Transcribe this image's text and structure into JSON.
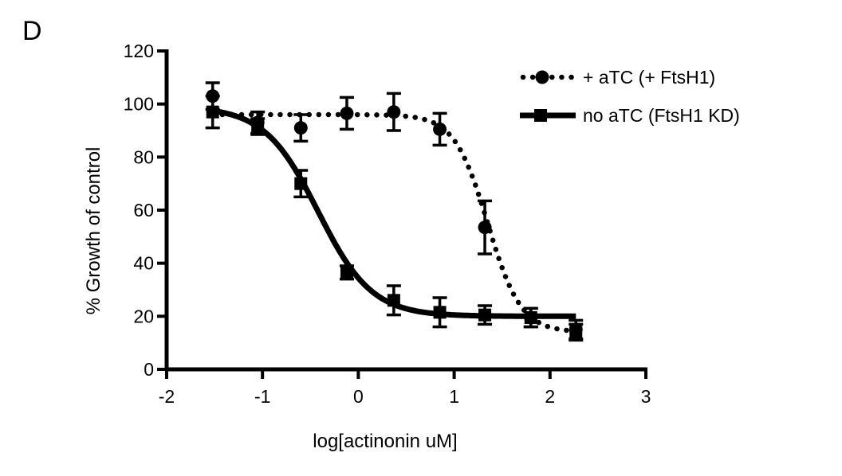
{
  "panel_label": "D",
  "chart_data": {
    "type": "line",
    "title": "",
    "xlabel": "log[actinonin uM]",
    "ylabel": "% Growth of control",
    "xlim": [
      -2,
      3
    ],
    "ylim": [
      0,
      120
    ],
    "x_ticks": [
      "-2",
      "-1",
      "0",
      "1",
      "2",
      "3"
    ],
    "y_ticks": [
      "0",
      "20",
      "40",
      "60",
      "80",
      "100",
      "120"
    ],
    "legend_position": "top-right",
    "series": [
      {
        "name": "+ aTC (+ FtsH1)",
        "marker": "circle",
        "line": "dotted",
        "points": [
          {
            "x": -1.52,
            "y": 103,
            "err": 5
          },
          {
            "x": -1.05,
            "y": 93,
            "err": 4
          },
          {
            "x": -0.6,
            "y": 91,
            "err": 5
          },
          {
            "x": -0.12,
            "y": 96.5,
            "err": 6
          },
          {
            "x": 0.37,
            "y": 97,
            "err": 7
          },
          {
            "x": 0.85,
            "y": 90.5,
            "err": 6
          },
          {
            "x": 1.32,
            "y": 53.5,
            "err": 10
          },
          {
            "x": 1.8,
            "y": 19.5,
            "err": 3.5
          },
          {
            "x": 2.27,
            "y": 15,
            "err": 3.5
          }
        ],
        "curve": {
          "top": 96,
          "bottom": 14,
          "log_ic50": 1.35,
          "hill": 2.5
        }
      },
      {
        "name": "no aTC (FtsH1 KD)",
        "marker": "square",
        "line": "solid",
        "points": [
          {
            "x": -1.52,
            "y": 97,
            "err": 6
          },
          {
            "x": -1.05,
            "y": 91.5,
            "err": 3
          },
          {
            "x": -0.6,
            "y": 70,
            "err": 5
          },
          {
            "x": -0.12,
            "y": 36.5,
            "err": 2.5
          },
          {
            "x": 0.37,
            "y": 26,
            "err": 5.5
          },
          {
            "x": 0.85,
            "y": 21.5,
            "err": 5.5
          },
          {
            "x": 1.32,
            "y": 20.5,
            "err": 3.5
          },
          {
            "x": 1.8,
            "y": 19.5,
            "err": 3.5
          },
          {
            "x": 2.27,
            "y": 14,
            "err": 3
          }
        ],
        "curve": {
          "top": 99,
          "bottom": 20,
          "log_ic50": -0.42,
          "hill": 1.55
        }
      }
    ]
  }
}
